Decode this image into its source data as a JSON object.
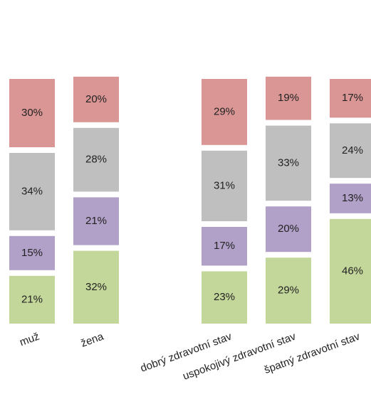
{
  "chart_data": {
    "type": "stacked-bar",
    "categories": [
      "muž",
      "žena",
      null,
      "dobrý zdravotní stav",
      "uspokojivý zdravotní stav",
      "špatný zdravotní stav"
    ],
    "series": [
      {
        "color": "#c4d79b",
        "values": [
          21,
          32,
          null,
          23,
          29,
          46
        ],
        "value_labels": [
          "21%",
          "32%",
          null,
          "23%",
          "29%",
          "46%"
        ]
      },
      {
        "color": "#b1a0c7",
        "values": [
          15,
          21,
          null,
          17,
          20,
          13
        ],
        "value_labels": [
          "15%",
          "21%",
          null,
          "17%",
          "20%",
          "13%"
        ]
      },
      {
        "color": "#bfbfbf",
        "values": [
          34,
          28,
          null,
          31,
          33,
          24
        ],
        "value_labels": [
          "34%",
          "28%",
          null,
          "31%",
          "33%",
          "24%"
        ]
      },
      {
        "color": "#da9694",
        "values": [
          30,
          20,
          null,
          29,
          19,
          17
        ],
        "value_labels": [
          "30%",
          "20%",
          null,
          "29%",
          "19%",
          "17%"
        ]
      }
    ]
  }
}
